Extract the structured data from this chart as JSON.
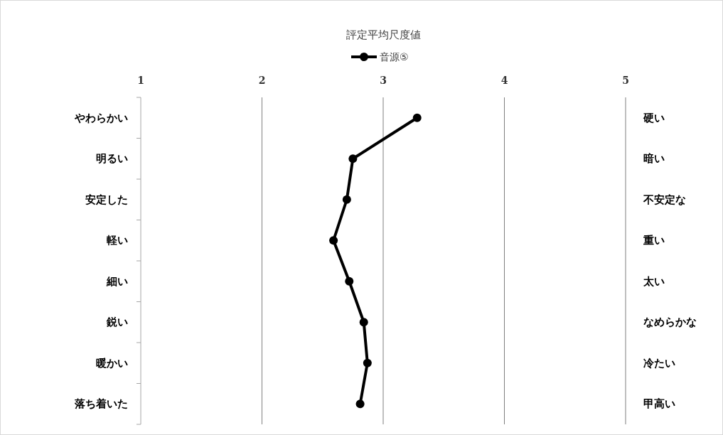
{
  "chart_data": {
    "type": "line",
    "orientation": "horizontal",
    "title": "評定平均尺度値",
    "categories": [
      "やわらかい",
      "明るい",
      "安定した",
      "軽い",
      "細い",
      "鋭い",
      "暖かい",
      "落ち着いた"
    ],
    "y2_categories": [
      "硬い",
      "暗い",
      "不安定な",
      "重い",
      "太い",
      "なめらかな",
      "冷たい",
      "甲高い"
    ],
    "series": [
      {
        "name": "音源⑤",
        "color": "#000000",
        "values": [
          3.28,
          2.75,
          2.7,
          2.59,
          2.72,
          2.84,
          2.87,
          2.81
        ]
      }
    ],
    "xlim": [
      1,
      5
    ],
    "xticks": [
      1,
      2,
      3,
      4,
      5
    ],
    "grid": "x",
    "legend": "top",
    "marker": "circle",
    "line_style": "solid"
  }
}
